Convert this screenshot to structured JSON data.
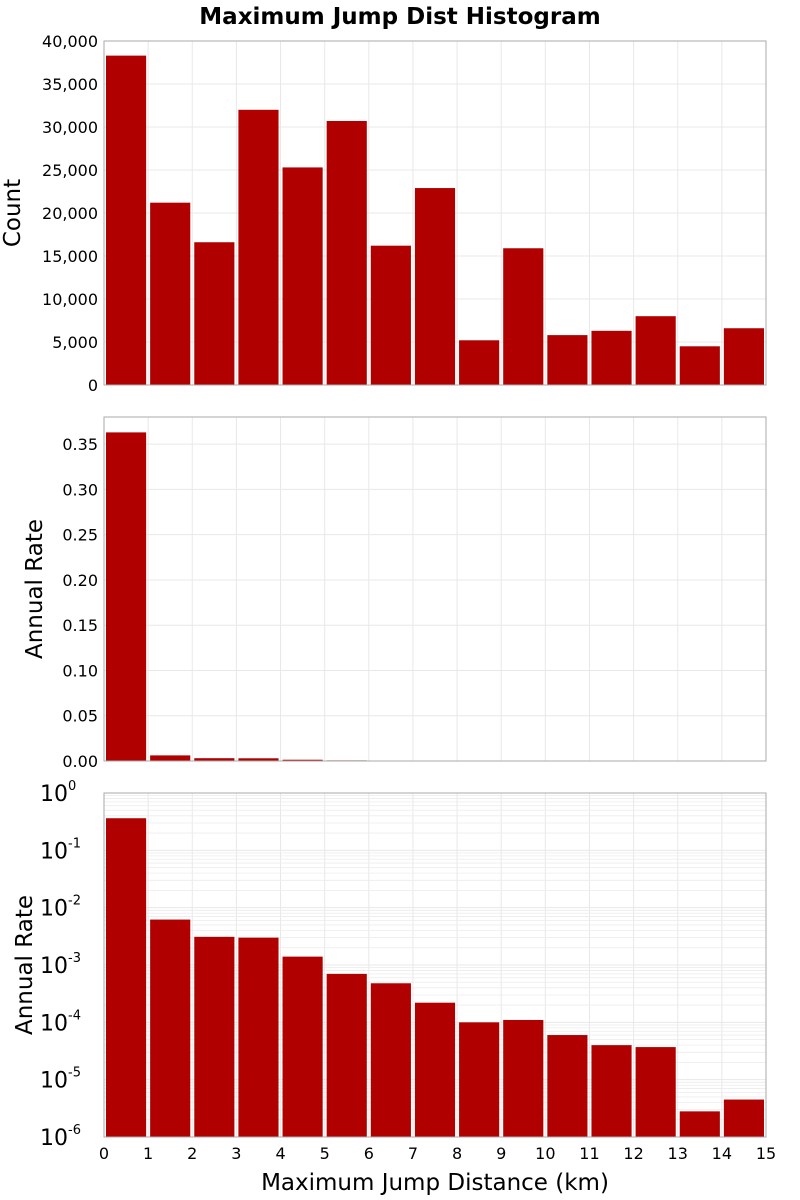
{
  "chart_data": {
    "type": "bar",
    "title": "Maximum Jump Dist Histogram",
    "xlabel": "Maximum Jump Distance (km)",
    "xlim": [
      0,
      15
    ],
    "x_ticks": [
      "0",
      "1",
      "2",
      "3",
      "4",
      "5",
      "6",
      "7",
      "8",
      "9",
      "10",
      "11",
      "12",
      "13",
      "14",
      "15"
    ],
    "bin_width": 1,
    "bin_starts": [
      0,
      1,
      2,
      3,
      4,
      5,
      6,
      7,
      8,
      9,
      10,
      11,
      12,
      13,
      14
    ],
    "color": "#b00000",
    "panels": [
      {
        "ylabel": "Count",
        "scale": "linear",
        "ylim": [
          0,
          40000
        ],
        "y_ticks": [
          "0",
          "5,000",
          "10,000",
          "15,000",
          "20,000",
          "25,000",
          "30,000",
          "35,000",
          "40,000"
        ],
        "y_tick_values": [
          0,
          5000,
          10000,
          15000,
          20000,
          25000,
          30000,
          35000,
          40000
        ],
        "values": [
          38300,
          21200,
          16600,
          32000,
          25300,
          30700,
          16200,
          22900,
          5200,
          15900,
          5800,
          6300,
          8000,
          4500,
          6600
        ]
      },
      {
        "ylabel": "Annual Rate",
        "scale": "linear",
        "ylim": [
          0,
          0.38
        ],
        "y_ticks": [
          "0.00",
          "0.05",
          "0.10",
          "0.15",
          "0.20",
          "0.25",
          "0.30",
          "0.35"
        ],
        "y_tick_values": [
          0,
          0.05,
          0.1,
          0.15,
          0.2,
          0.25,
          0.3,
          0.35
        ],
        "values": [
          0.363,
          0.0062,
          0.0031,
          0.003,
          0.0014,
          0.0007,
          0.00048,
          0.00022,
          0.0001,
          0.00011,
          6e-05,
          4e-05,
          3.7e-05,
          2.8e-06,
          4.5e-06
        ]
      },
      {
        "ylabel": "Annual Rate",
        "scale": "log",
        "ylim": [
          1e-06,
          1
        ],
        "y_ticks": [
          {
            "base": "10",
            "exp": "0",
            "value": 1
          },
          {
            "base": "10",
            "exp": "-1",
            "value": 0.1
          },
          {
            "base": "10",
            "exp": "-2",
            "value": 0.01
          },
          {
            "base": "10",
            "exp": "-3",
            "value": 0.001
          },
          {
            "base": "10",
            "exp": "-4",
            "value": 0.0001
          },
          {
            "base": "10",
            "exp": "-5",
            "value": 1e-05
          },
          {
            "base": "10",
            "exp": "-6",
            "value": 1e-06
          }
        ],
        "values": [
          0.363,
          0.0062,
          0.0031,
          0.003,
          0.0014,
          0.0007,
          0.00048,
          0.00022,
          0.0001,
          0.00011,
          6e-05,
          4e-05,
          3.7e-05,
          2.8e-06,
          4.5e-06
        ]
      }
    ]
  }
}
